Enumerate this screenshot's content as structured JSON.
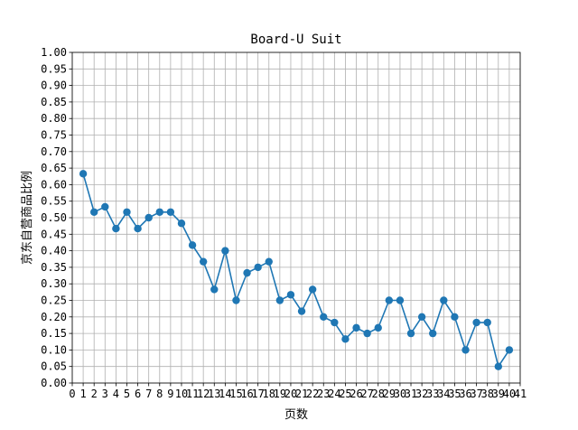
{
  "chart_data": {
    "type": "line",
    "title": "Board-U Suit",
    "xlabel": "页数",
    "ylabel": "京东自营商品比例",
    "xlim": [
      0,
      41
    ],
    "ylim": [
      0,
      1.0
    ],
    "x_ticks": [
      0,
      1,
      2,
      3,
      4,
      5,
      6,
      7,
      8,
      9,
      10,
      11,
      12,
      13,
      14,
      15,
      16,
      17,
      18,
      19,
      20,
      21,
      22,
      23,
      24,
      25,
      26,
      27,
      28,
      29,
      30,
      31,
      32,
      33,
      34,
      35,
      36,
      37,
      38,
      39,
      40,
      41
    ],
    "y_ticks": [
      "0.00",
      "0.05",
      "0.10",
      "0.15",
      "0.20",
      "0.25",
      "0.30",
      "0.35",
      "0.40",
      "0.45",
      "0.50",
      "0.55",
      "0.60",
      "0.65",
      "0.70",
      "0.75",
      "0.80",
      "0.85",
      "0.90",
      "0.95",
      "1.00"
    ],
    "grid": true,
    "line_color": "#1f77b4",
    "series": [
      {
        "name": "Board-U Suit",
        "x": [
          1,
          2,
          3,
          4,
          5,
          6,
          7,
          8,
          9,
          10,
          11,
          12,
          13,
          14,
          15,
          16,
          17,
          18,
          19,
          20,
          21,
          22,
          23,
          24,
          25,
          26,
          27,
          28,
          29,
          30,
          31,
          32,
          33,
          34,
          35,
          36,
          37,
          38,
          39,
          40
        ],
        "values": [
          0.633,
          0.517,
          0.533,
          0.467,
          0.517,
          0.467,
          0.5,
          0.517,
          0.517,
          0.483,
          0.417,
          0.367,
          0.283,
          0.4,
          0.25,
          0.333,
          0.35,
          0.367,
          0.25,
          0.267,
          0.217,
          0.283,
          0.2,
          0.183,
          0.133,
          0.167,
          0.15,
          0.167,
          0.25,
          0.25,
          0.15,
          0.2,
          0.15,
          0.25,
          0.2,
          0.1,
          0.183,
          0.183,
          0.05,
          0.1
        ]
      }
    ]
  }
}
